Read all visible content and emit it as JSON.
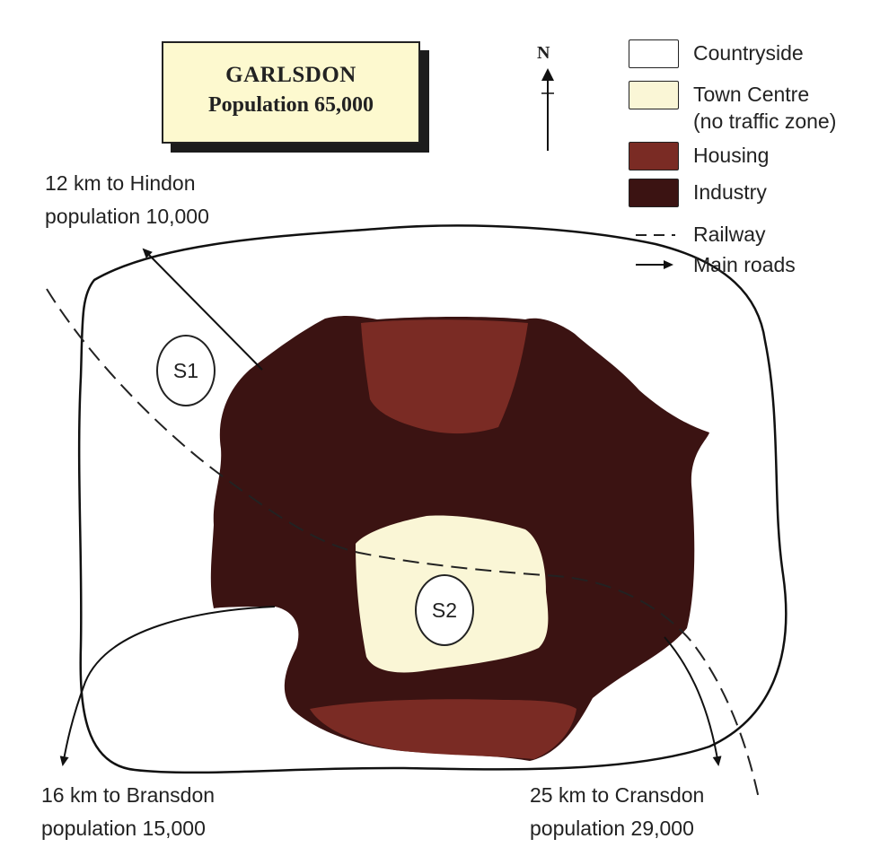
{
  "title": {
    "town": "GARLSDON",
    "population": "Population 65,000"
  },
  "compass": {
    "label": "N"
  },
  "legend": {
    "countryside": {
      "label": "Countryside",
      "color": "#ffffff"
    },
    "town_centre": {
      "label": "Town Centre",
      "sub": "(no traffic zone)",
      "color": "#faf6d6"
    },
    "housing": {
      "label": "Housing",
      "color": "#7a2b24"
    },
    "industry": {
      "label": "Industry",
      "color": "#3b1312"
    },
    "railway": {
      "label": "Railway"
    },
    "main_roads": {
      "label": "Main roads"
    }
  },
  "destinations": {
    "hindon": {
      "distance": "12 km to Hindon",
      "population": "population 10,000"
    },
    "bransdon": {
      "distance": "16 km to Bransdon",
      "population": "population  15,000"
    },
    "cransdon": {
      "distance": "25 km to Cransdon",
      "population": "population 29,000"
    }
  },
  "sites": {
    "s1": "S1",
    "s2": "S2"
  }
}
